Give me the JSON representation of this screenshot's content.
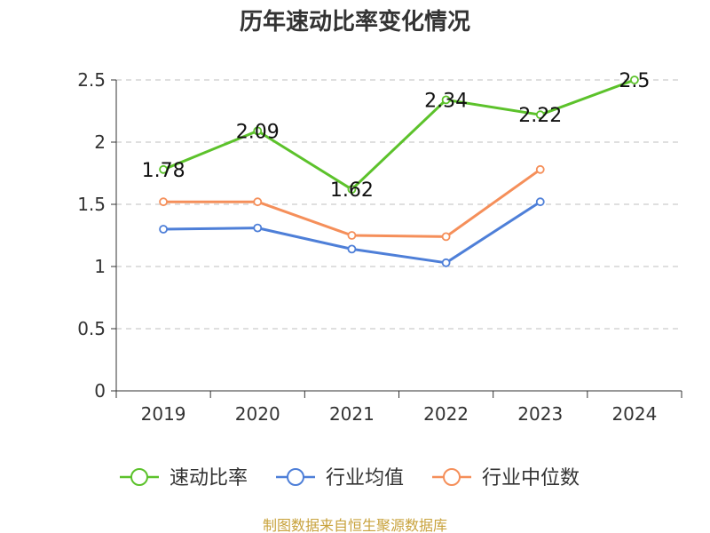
{
  "chart_data": {
    "type": "line",
    "title": "历年速动比率变化情况",
    "categories": [
      "2019",
      "2020",
      "2021",
      "2022",
      "2023",
      "2024"
    ],
    "ylim": [
      0,
      2.5
    ],
    "yticks": [
      "0",
      "0.5",
      "1",
      "1.5",
      "2",
      "2.5"
    ],
    "grid": "horizontal-dashed",
    "legend_position": "bottom",
    "series": [
      {
        "name": "速动比率",
        "color": "#5cc22b",
        "values": [
          1.78,
          2.09,
          1.62,
          2.34,
          2.22,
          2.5
        ],
        "labels": [
          "1.78",
          "2.09",
          "1.62",
          "2.34",
          "2.22",
          "2.5"
        ]
      },
      {
        "name": "行业均值",
        "color": "#4e7fd8",
        "values": [
          1.3,
          1.31,
          1.14,
          1.03,
          1.52,
          null
        ]
      },
      {
        "name": "行业中位数",
        "color": "#f58f5a",
        "values": [
          1.52,
          1.52,
          1.25,
          1.24,
          1.78,
          null
        ]
      }
    ],
    "source": "制图数据来自恒生聚源数据库"
  }
}
